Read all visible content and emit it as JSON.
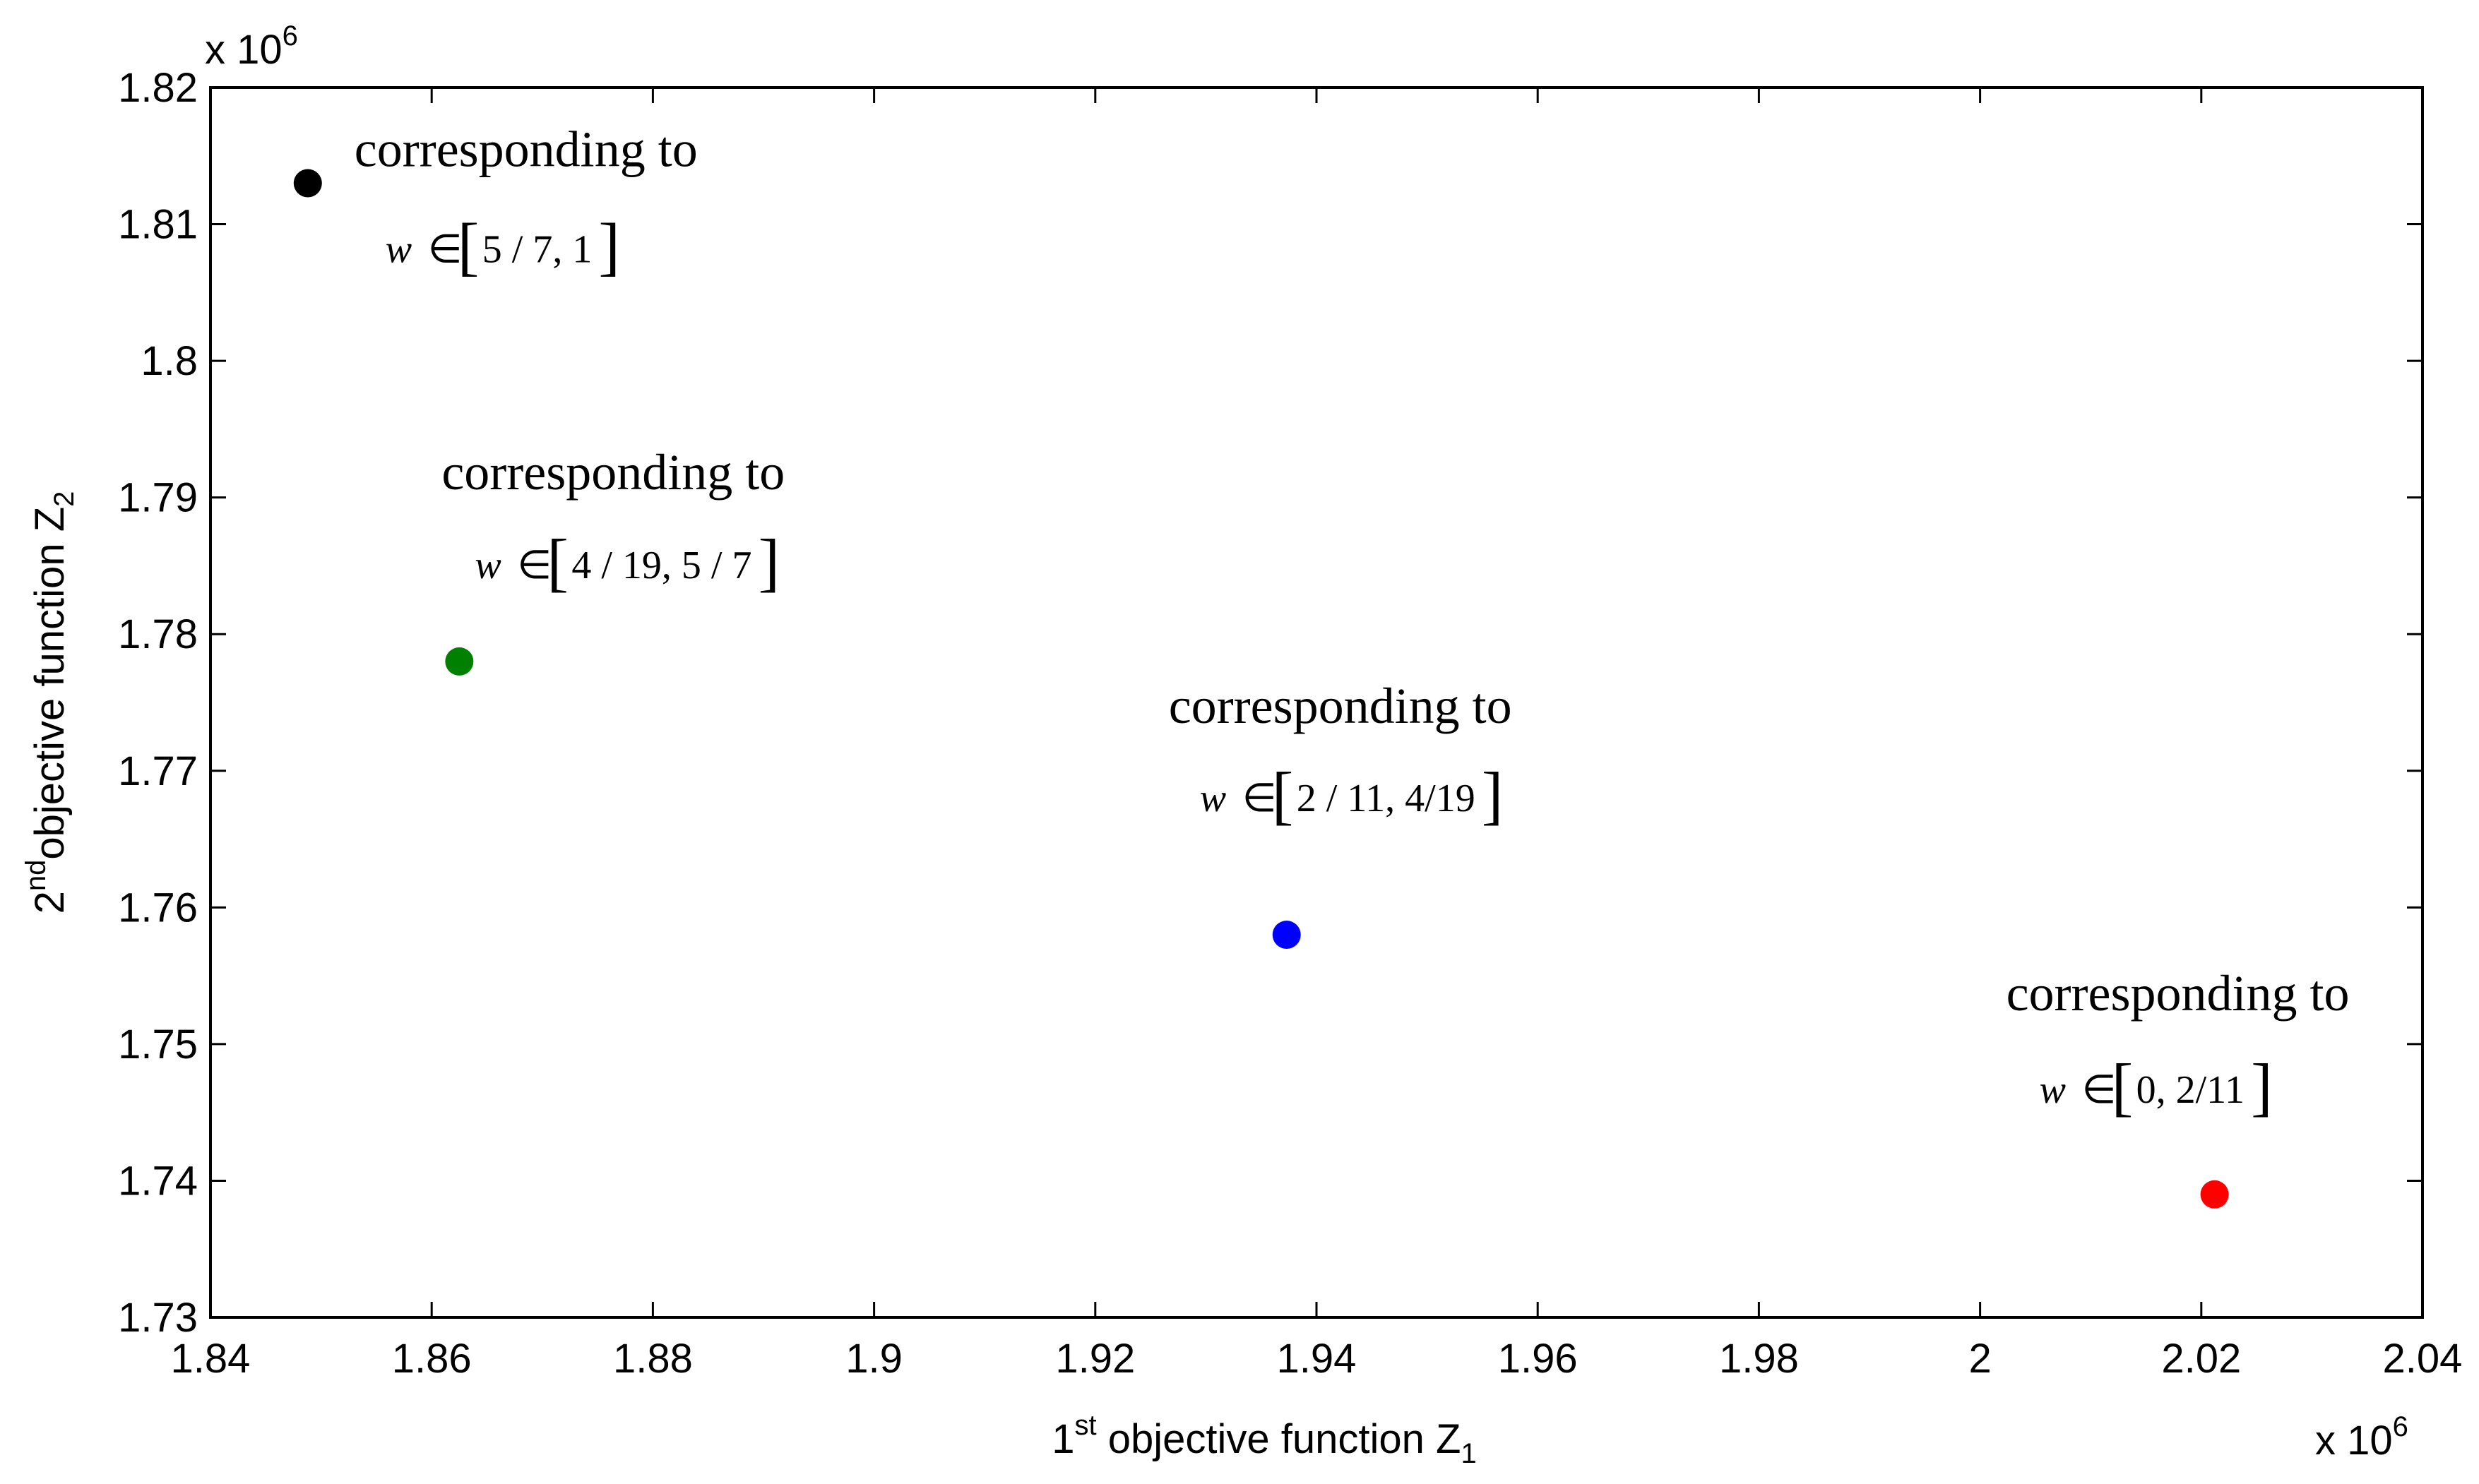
{
  "chart_data": {
    "type": "scatter",
    "xlabel": {
      "prefix": "1",
      "sup": "st",
      "main": " objective function Z",
      "sub": "1"
    },
    "ylabel": {
      "prefix": "2",
      "sup": "nd",
      "main": "objective function Z",
      "sub": "2"
    },
    "x_multiplier": {
      "base": "x 10",
      "exp": "6"
    },
    "y_multiplier": {
      "base": "x 10",
      "exp": "6"
    },
    "xlim": [
      1.84,
      2.04
    ],
    "ylim": [
      1.73,
      1.82
    ],
    "x_ticks": [
      1.84,
      1.86,
      1.88,
      1.9,
      1.92,
      1.94,
      1.96,
      1.98,
      2.0,
      2.02,
      2.04
    ],
    "x_tick_labels": [
      "1.84",
      "1.86",
      "1.88",
      "1.9",
      "1.92",
      "1.94",
      "1.96",
      "1.98",
      "2",
      "2.02",
      "2.04"
    ],
    "y_ticks": [
      1.73,
      1.74,
      1.75,
      1.76,
      1.77,
      1.78,
      1.79,
      1.8,
      1.81,
      1.82
    ],
    "y_tick_labels": [
      "1.73",
      "1.74",
      "1.75",
      "1.76",
      "1.77",
      "1.78",
      "1.79",
      "1.8",
      "1.81",
      "1.82"
    ],
    "grid": false,
    "points": [
      {
        "x": 1.8488,
        "y": 1.813,
        "color": "#000000",
        "text": "corresponding to",
        "w": "w",
        "member": "∈",
        "interval": "5 / 7, 1"
      },
      {
        "x": 1.8625,
        "y": 1.778,
        "color": "#008000",
        "text": "corresponding to",
        "w": "w",
        "member": "∈",
        "interval": "4 / 19, 5 / 7"
      },
      {
        "x": 1.9373,
        "y": 1.758,
        "color": "#0000ff",
        "text": "corresponding to",
        "w": "w",
        "member": "∈",
        "interval": "2 / 11, 4/19"
      },
      {
        "x": 2.0212,
        "y": 1.739,
        "color": "#ff0000",
        "text": "corresponding to",
        "w": "w",
        "member": "∈",
        "interval": "0, 2/11"
      }
    ]
  }
}
